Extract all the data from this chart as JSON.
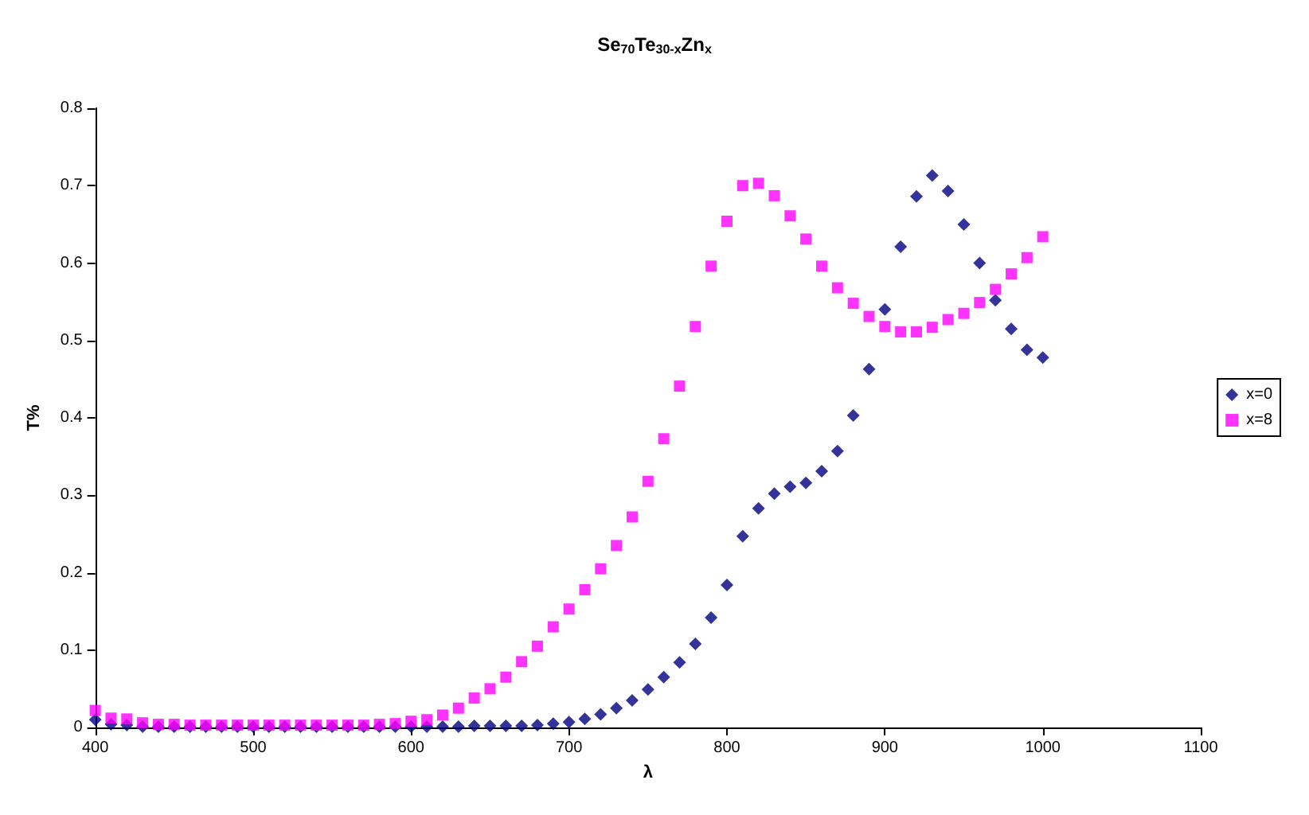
{
  "chart_data": {
    "type": "scatter",
    "title": "Se$_{70}$Te$_{30-x}$Zn$_{x}$",
    "xlabel": "λ",
    "ylabel": "T%",
    "x": [
      400,
      410,
      420,
      430,
      440,
      450,
      460,
      470,
      480,
      490,
      500,
      510,
      520,
      530,
      540,
      550,
      560,
      570,
      580,
      590,
      600,
      610,
      620,
      630,
      640,
      650,
      660,
      670,
      680,
      690,
      700,
      710,
      720,
      730,
      740,
      750,
      760,
      770,
      780,
      790,
      800,
      810,
      820,
      830,
      840,
      850,
      860,
      870,
      880,
      890,
      900,
      910,
      920,
      930,
      940,
      950,
      960,
      970,
      980,
      990,
      1000
    ],
    "series": [
      {
        "name": "x=0",
        "color": "#000080",
        "marker": "diamond",
        "values": [
          0.01,
          0.004,
          0.003,
          0.001,
          0.001,
          0.001,
          0.001,
          0.001,
          0.001,
          0.001,
          0.001,
          0.001,
          0.001,
          0.001,
          0.001,
          0.001,
          0.001,
          0.001,
          0.001,
          0.001,
          0.001,
          0.001,
          0.001,
          0.001,
          0.002,
          0.002,
          0.002,
          0.002,
          0.003,
          0.005,
          0.007,
          0.011,
          0.017,
          0.025,
          0.035,
          0.049,
          0.065,
          0.084,
          0.108,
          0.142,
          0.184,
          0.247,
          0.283,
          0.302,
          0.311,
          0.316,
          0.331,
          0.357,
          0.403,
          0.463,
          0.54,
          0.621,
          0.686,
          0.713,
          0.693,
          0.65,
          0.6,
          0.552,
          0.515,
          0.488,
          0.478
        ]
      },
      {
        "name": "x=8",
        "color": "#ff00ff",
        "marker": "square",
        "values": [
          0.022,
          0.012,
          0.011,
          0.006,
          0.004,
          0.004,
          0.003,
          0.003,
          0.003,
          0.003,
          0.003,
          0.003,
          0.003,
          0.003,
          0.003,
          0.003,
          0.003,
          0.003,
          0.004,
          0.005,
          0.008,
          0.01,
          0.016,
          0.025,
          0.038,
          0.05,
          0.065,
          0.085,
          0.105,
          0.13,
          0.153,
          0.178,
          0.205,
          0.235,
          0.272,
          0.318,
          0.373,
          0.441,
          0.518,
          0.596,
          0.654,
          0.7,
          0.703,
          0.687,
          0.661,
          0.631,
          0.596,
          0.568,
          0.548,
          0.531,
          0.518,
          0.511,
          0.511,
          0.517,
          0.527,
          0.535,
          0.549,
          0.566,
          0.586,
          0.607,
          0.634
        ]
      }
    ],
    "xlim": [
      400,
      1100
    ],
    "xticks": [
      400,
      500,
      600,
      700,
      800,
      900,
      1000,
      1100
    ],
    "ylim": [
      0,
      0.8
    ],
    "yticks": [
      0,
      0.1,
      0.2,
      0.3,
      0.4,
      0.5,
      0.6,
      0.7,
      0.8
    ],
    "grid": false,
    "legend": "right"
  }
}
